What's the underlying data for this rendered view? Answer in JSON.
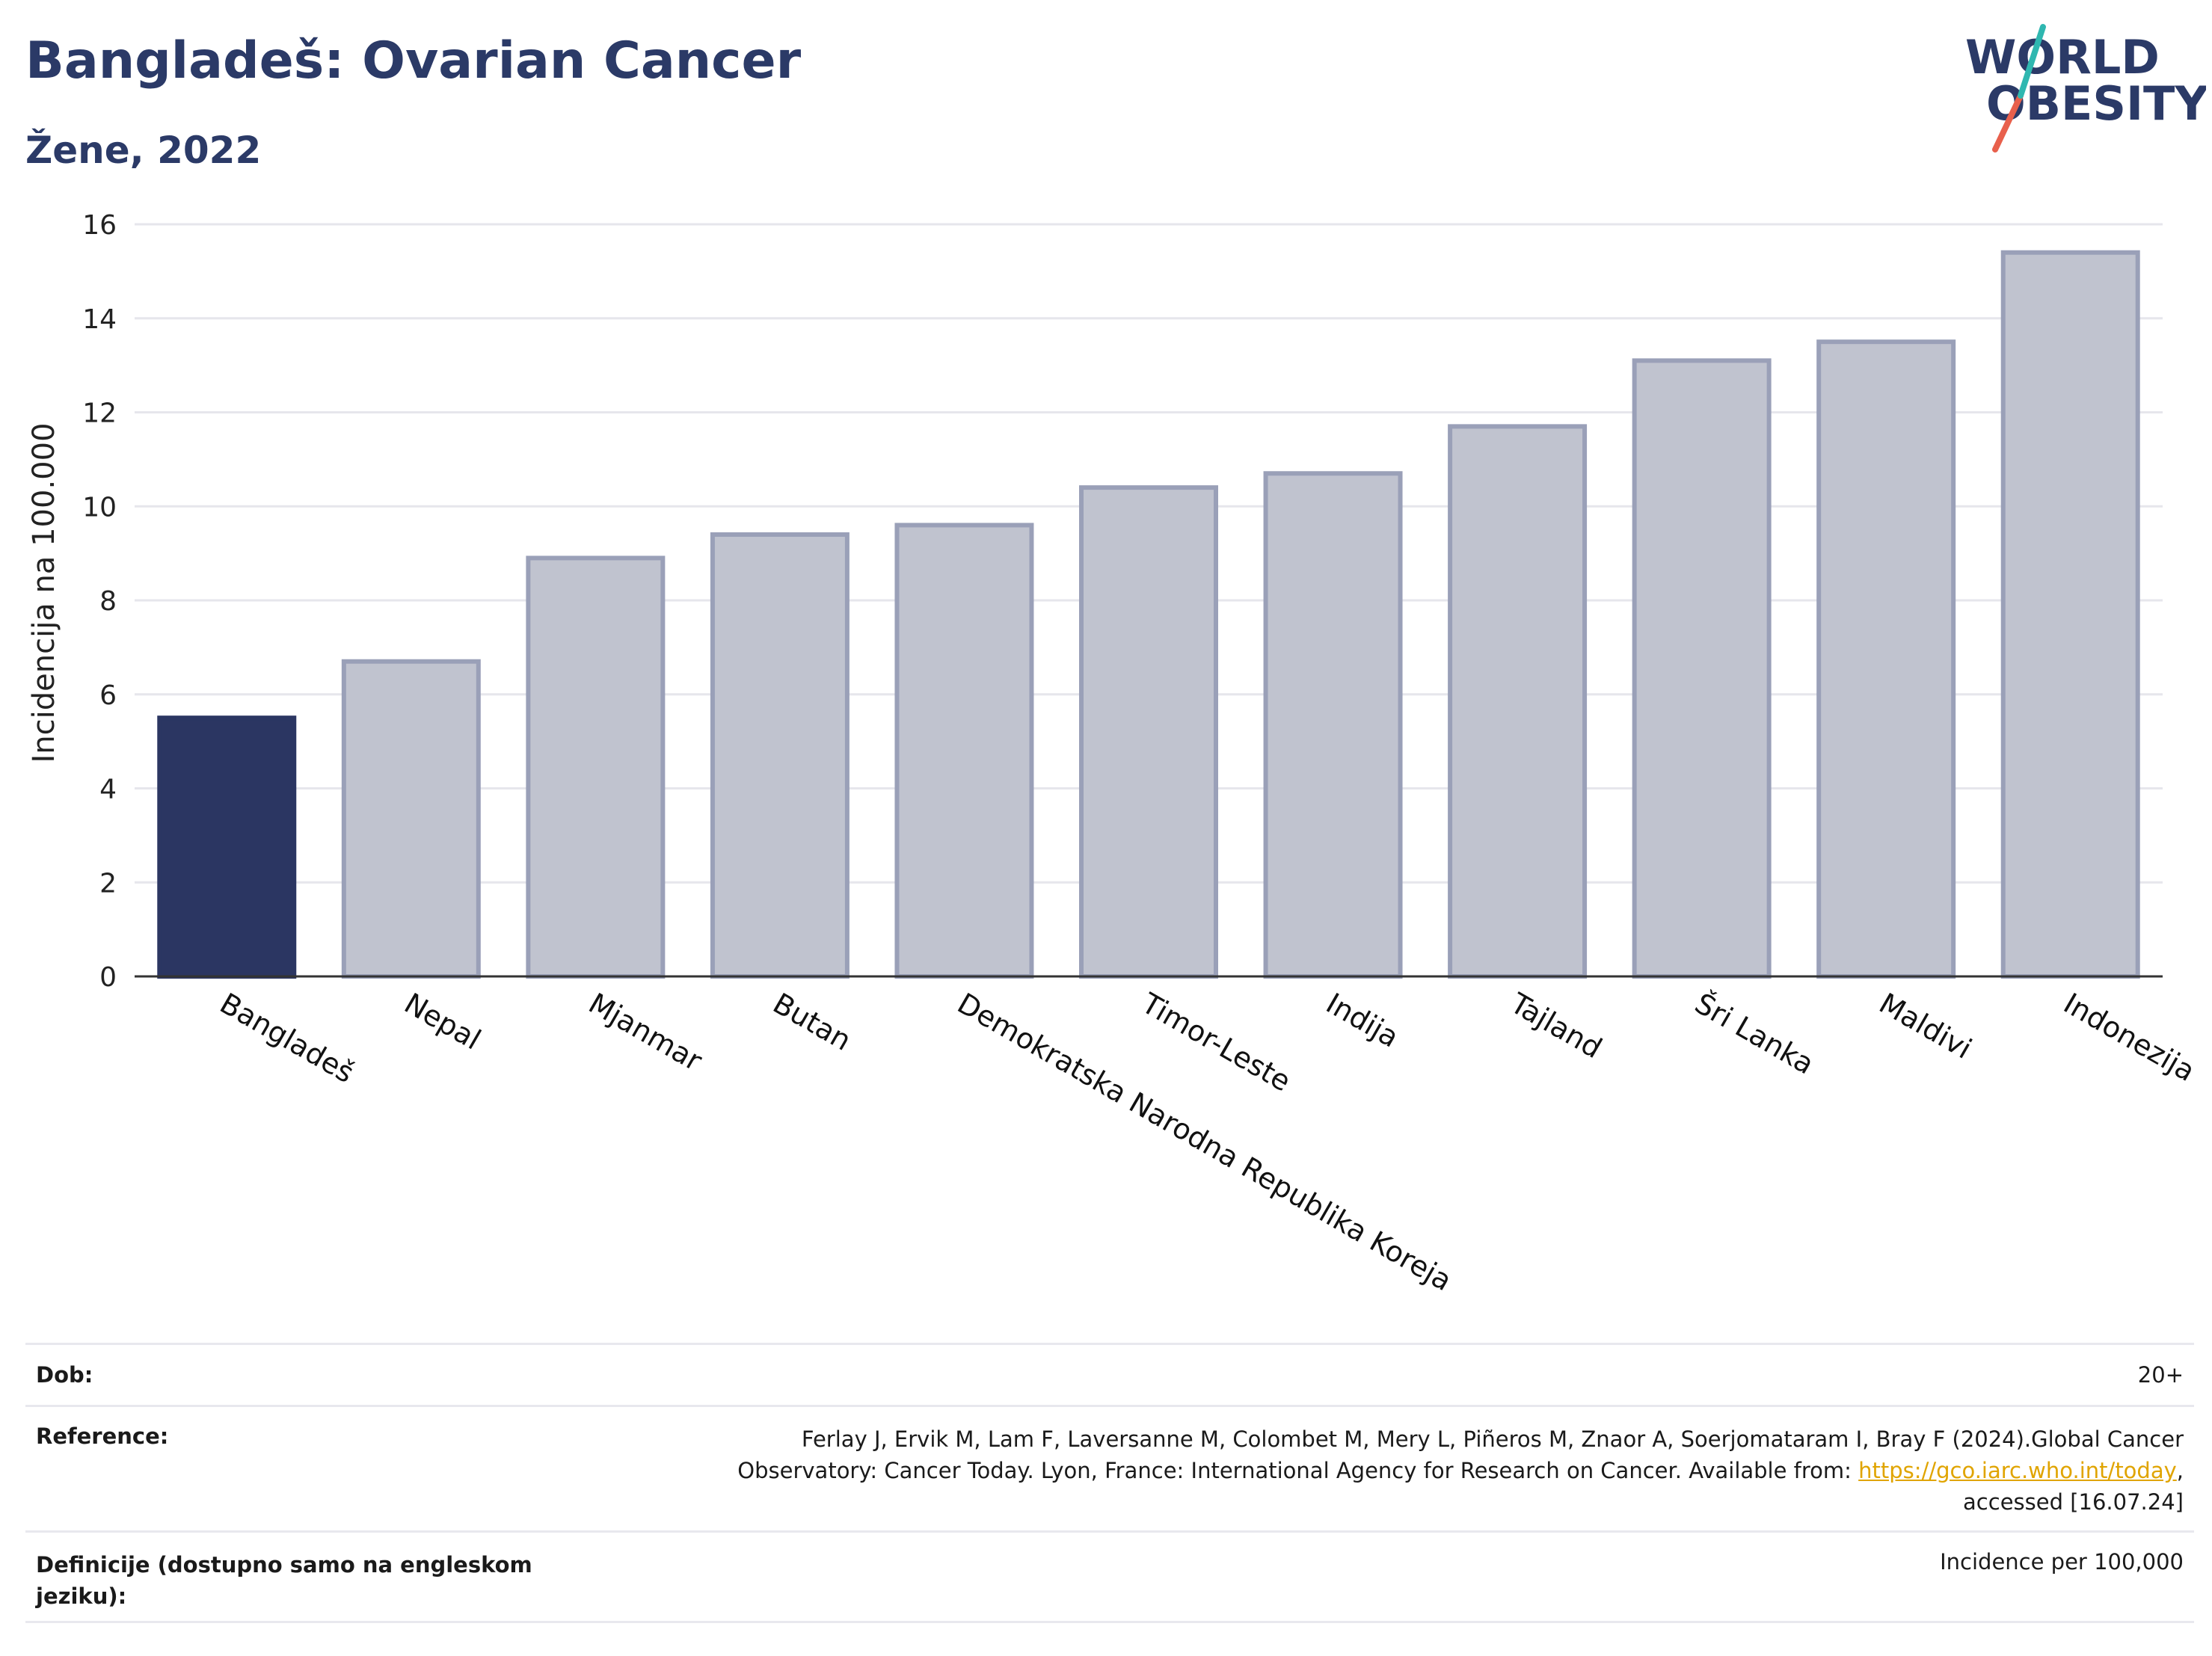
{
  "header": {
    "title": "Bangladeš: Ovarian Cancer",
    "subtitle": "Žene, 2022"
  },
  "logo": {
    "line1": "WORLD",
    "line2": "OBESITY"
  },
  "colors": {
    "highlight": "#2b3662",
    "bar": "#c0c3cf",
    "bar_border": "#9aa0b8",
    "text": "#2b3a67",
    "link": "#e0a400"
  },
  "chart_data": {
    "type": "bar",
    "categories": [
      "Bangladeš",
      "Nepal",
      "Mjanmar",
      "Butan",
      "Demokratska Narodna Republika Koreja",
      "Timor-Leste",
      "Indija",
      "Tajland",
      "Šri Lanka",
      "Maldivi",
      "Indonezija"
    ],
    "values": [
      5.5,
      6.7,
      8.9,
      9.4,
      9.6,
      10.4,
      10.7,
      11.7,
      13.1,
      13.5,
      15.4
    ],
    "highlight": "Bangladeš",
    "ylabel": "Incidencija na 100.000",
    "ylim": [
      0,
      16
    ],
    "yticks": [
      0,
      2,
      4,
      6,
      8,
      10,
      12,
      14,
      16
    ],
    "grid": true
  },
  "table": {
    "age_label": "Dob:",
    "age_value": "20+",
    "ref_label": "Reference:",
    "ref_text_1": "Ferlay J, Ervik M, Lam F, Laversanne M, Colombet M, Mery L, Piñeros M, Znaor A, Soerjomataram I, Bray F (2024).Global Cancer",
    "ref_text_2": "Observatory: Cancer Today. Lyon, France: International Agency for Research on Cancer. Available from: ",
    "ref_link": "https://gco.iarc.who.int/today",
    "ref_text_3": ",",
    "ref_text_4": "accessed [16.07.24]",
    "def_label_1": "Definicije (dostupno samo na engleskom",
    "def_label_2": "jeziku):",
    "def_value": "Incidence per 100,000"
  }
}
